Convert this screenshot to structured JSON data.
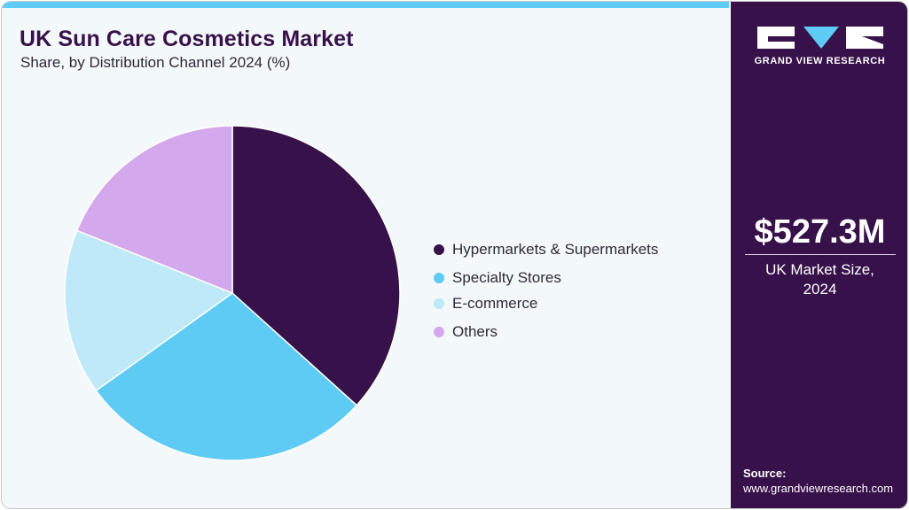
{
  "header": {
    "title": "UK Sun Care Cosmetics Market",
    "subtitle": "Share, by Distribution Channel 2024 (%)"
  },
  "colors": {
    "accent_bar": "#5ecbf5",
    "sidebar_bg": "#37114a",
    "background": "#f3f8fb",
    "title": "#37114a"
  },
  "legend": {
    "items": [
      {
        "label": "Hypermarkets & Supermarkets",
        "color": "#37114a"
      },
      {
        "label": "Specialty Stores",
        "color": "#5ecbf5"
      },
      {
        "label": "E-commerce",
        "color": "#bde9f9"
      },
      {
        "label": "Others",
        "color": "#d4a8ec"
      }
    ]
  },
  "sidebar": {
    "logo_text": "GRAND VIEW RESEARCH",
    "market_size_value": "$527.3M",
    "market_size_label_line1": "UK Market Size,",
    "market_size_label_line2": "2024",
    "source_label": "Source:",
    "source_url": "www.grandviewresearch.com"
  },
  "chart_data": {
    "type": "pie",
    "title": "UK Sun Care Cosmetics Market",
    "subtitle": "Share, by Distribution Channel 2024 (%)",
    "categories": [
      "Hypermarkets & Supermarkets",
      "Specialty Stores",
      "E-commerce",
      "Others"
    ],
    "values": [
      36.7,
      28.4,
      16.0,
      18.9
    ],
    "colors": [
      "#37114a",
      "#5ecbf5",
      "#bde9f9",
      "#d4a8ec"
    ],
    "start_angle_deg": 0,
    "direction": "clockwise",
    "legend_position": "right",
    "data_labels": false
  }
}
